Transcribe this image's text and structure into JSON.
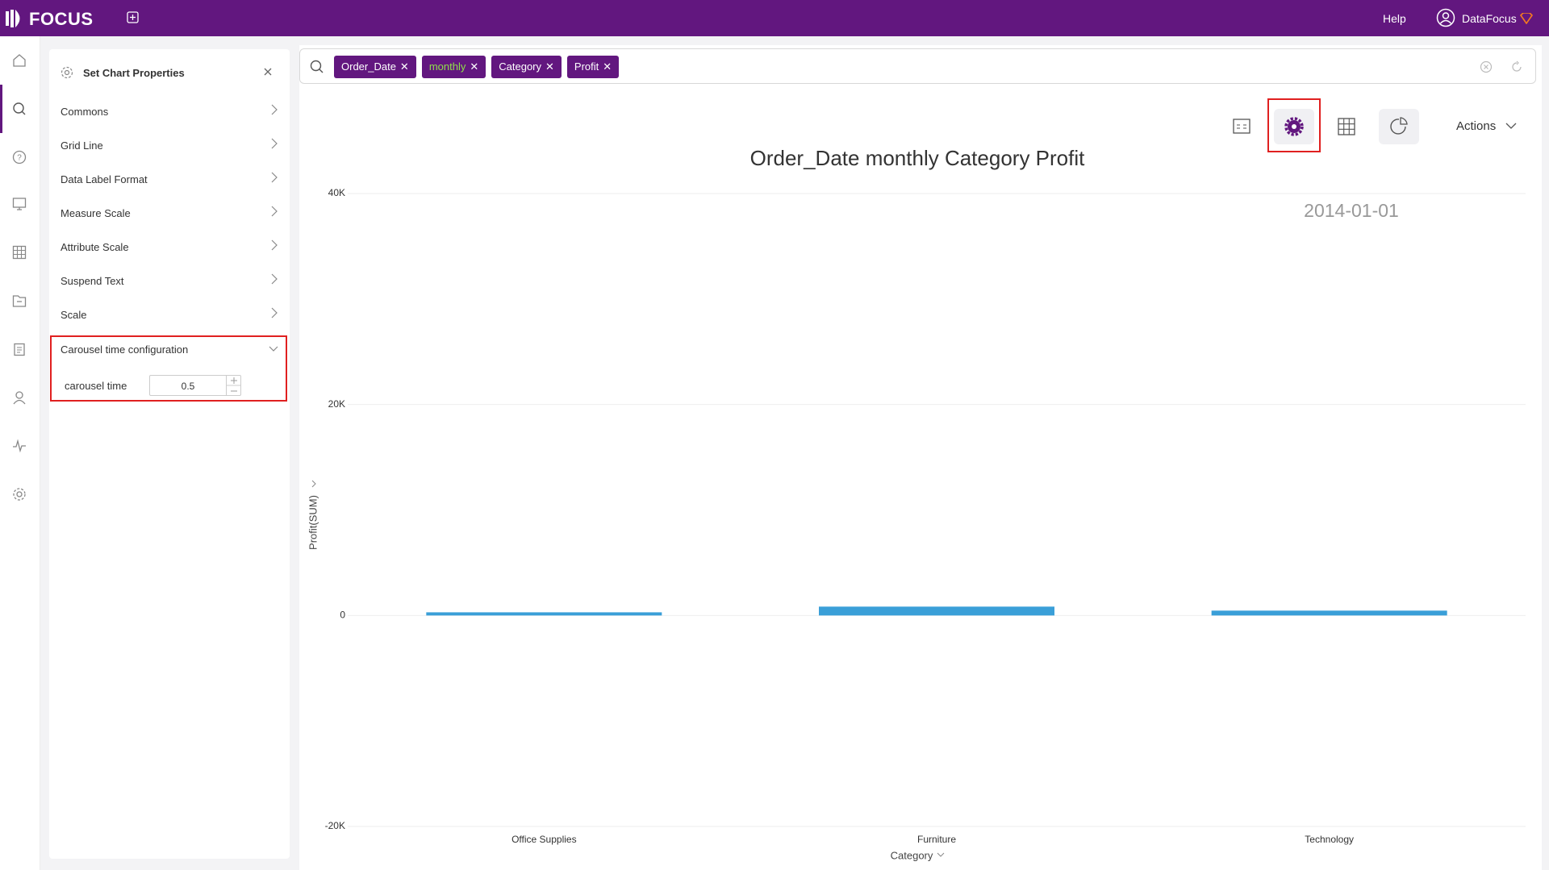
{
  "header": {
    "logo": "FOCUS",
    "help": "Help",
    "user": "DataFocus"
  },
  "panel": {
    "title": "Set Chart Properties",
    "items": [
      "Commons",
      "Grid Line",
      "Data Label Format",
      "Measure Scale",
      "Attribute Scale",
      "Suspend Text",
      "Scale"
    ],
    "carousel": {
      "title": "Carousel time configuration",
      "field": "carousel time",
      "value": 0.5
    }
  },
  "search": {
    "tokens": [
      "Order_Date",
      "monthly",
      "Category",
      "Profit"
    ]
  },
  "toolbar": {
    "actions": "Actions"
  },
  "chart_data": {
    "type": "bar",
    "title": "Order_Date monthly Category Profit",
    "annotation": "2014-01-01",
    "categories": [
      "Office Supplies",
      "Furniture",
      "Technology"
    ],
    "values": [
      300,
      840,
      460
    ],
    "color": "#3a9fd8",
    "ylim": [
      -20000,
      40000
    ],
    "yticks": [
      {
        "value": -20000,
        "label": "-20K"
      },
      0,
      {
        "value": 20000,
        "label": "20K"
      },
      {
        "value": 40000,
        "label": "40K"
      }
    ],
    "grid": true,
    "xlabel": "Category",
    "ylabel": "Profit(SUM)"
  }
}
